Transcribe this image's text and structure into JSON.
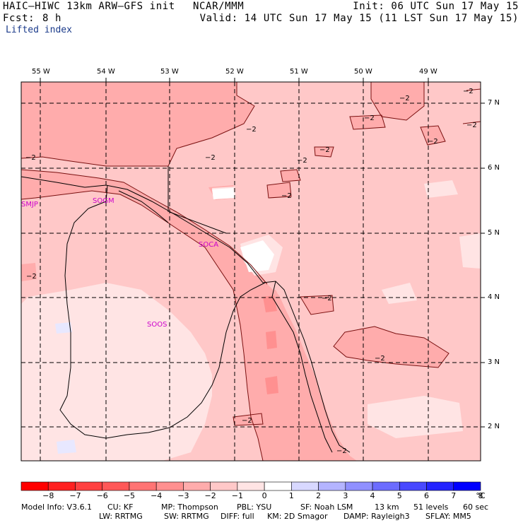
{
  "header": {
    "model": "HAIC–HIWC 13km ARW–GFS init",
    "center": "NCAR/MMM",
    "init": "Init: 06 UTC Sun 17 May 15",
    "fcst_label": "Fcst:",
    "fcst_value": "8 h",
    "valid": "Valid: 14 UTC Sun 17 May 15 (11 LST Sun 17 May 15)",
    "field": "Lifted index"
  },
  "axes": {
    "lon_labels": [
      "55 W",
      "54 W",
      "53 W",
      "52 W",
      "51 W",
      "50 W",
      "49 W"
    ],
    "lat_labels": [
      "7 N",
      "6 N",
      "5 N",
      "4 N",
      "3 N",
      "2 N"
    ]
  },
  "stations": [
    "SMJP",
    "SOGM",
    "SOCA",
    "SOOS"
  ],
  "contour_label": "−2",
  "colorbar": {
    "ticks": [
      "−8",
      "−7",
      "−6",
      "−5",
      "−4",
      "−3",
      "−2",
      "−1",
      "0",
      "1",
      "2",
      "3",
      "4",
      "5",
      "6",
      "7",
      "8"
    ],
    "unit": "°C",
    "colors": [
      "#ff0000",
      "#ff2020",
      "#ff4040",
      "#ff5858",
      "#ff7474",
      "#ff9090",
      "#ffacac",
      "#ffc8c8",
      "#ffe4e4",
      "#ffffff",
      "#d8d8ff",
      "#b4b4ff",
      "#9090ff",
      "#6c6cff",
      "#4848ff",
      "#2424ff",
      "#0000ff"
    ]
  },
  "footer": {
    "model_info": "Model Info: V3.6.1",
    "cu": "CU: KF",
    "mp": "MP: Thompson",
    "pbl": "PBL: YSU",
    "sf": "SF: Noah LSM",
    "res": "13 km",
    "levels": "51 levels",
    "dt": "60 sec",
    "lw": "LW: RRTMG",
    "sw": "SW: RRTMG",
    "diff": "DIFF: full",
    "km": "KM: 2D Smagor",
    "damp": "DAMP: Rayleigh3",
    "sflay": "SFLAY: MM5"
  }
}
